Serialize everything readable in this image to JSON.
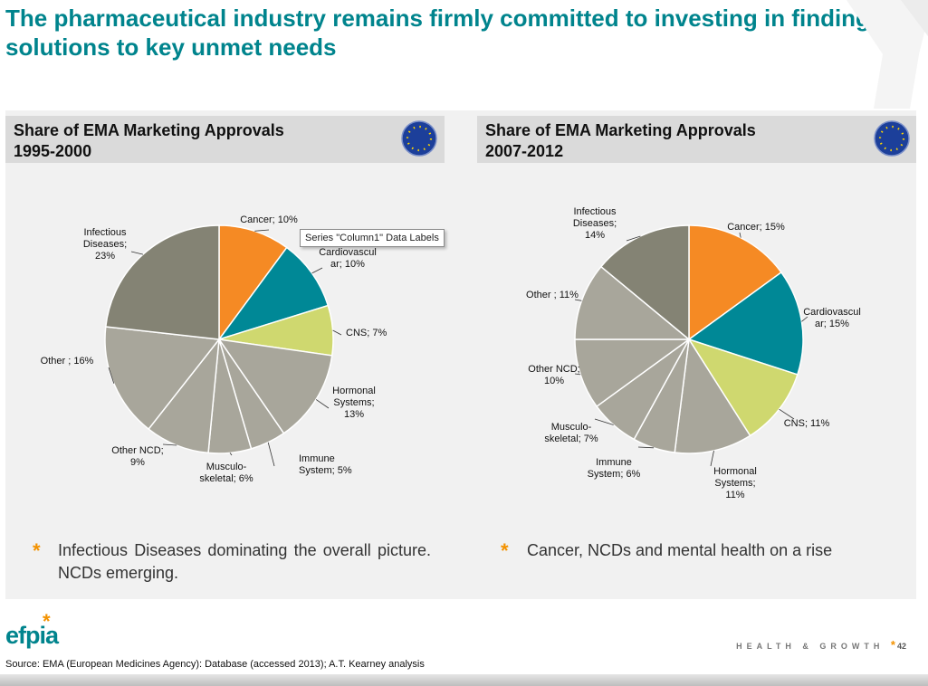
{
  "slide": {
    "title": "The pharmaceutical industry remains firmly committed to investing in finding solutions to key unmet needs",
    "tooltip": "Series \"Column1\" Data Labels",
    "brand": "efpia",
    "footer_tag": "HEALTH & GROWTH",
    "page_number": "42",
    "source": "Source: EMA (European Medicines Agency): Database (accessed 2013); A.T. Kearney analysis"
  },
  "bullets": [
    {
      "star": "*",
      "text": "Infectious Diseases dominating the overall picture. NCDs emerging."
    },
    {
      "star": "*",
      "text": "Cancer, NCDs and mental health on a rise"
    }
  ],
  "colors": {
    "teal": "#00848d",
    "orange": "#f58a24",
    "lime": "#cfd86f",
    "grey": "#a8a69b",
    "dark": "#848374"
  },
  "chart_data": [
    {
      "type": "pie",
      "title": "Share of EMA Marketing Approvals",
      "period": "1995-2000",
      "slices": [
        {
          "name": "Cancer",
          "value": 10,
          "label": [
            "Cancer; 10%"
          ],
          "color": "#f58a24"
        },
        {
          "name": "Cardiovascular",
          "value": 10,
          "label": [
            "Cardiovascul",
            "ar; 10%"
          ],
          "color": "#008896"
        },
        {
          "name": "CNS",
          "value": 7,
          "label": [
            "CNS; 7%"
          ],
          "color": "#cfd86f"
        },
        {
          "name": "Hormonal Systems",
          "value": 13,
          "label": [
            "Hormonal",
            "Systems;",
            "13%"
          ],
          "color": "#a8a69b"
        },
        {
          "name": "Immune System",
          "value": 5,
          "label": [
            "Immune",
            "System; 5%"
          ],
          "color": "#a8a69b"
        },
        {
          "name": "Musculo-skeletal",
          "value": 6,
          "label": [
            "Musculo-",
            "skeletal; 6%"
          ],
          "color": "#a8a69b"
        },
        {
          "name": "Other NCD",
          "value": 9,
          "label": [
            "Other NCD;",
            "9%"
          ],
          "color": "#a8a69b"
        },
        {
          "name": "Other",
          "value": 16,
          "label": [
            "Other ; 16%"
          ],
          "color": "#a8a69b"
        },
        {
          "name": "Infectious Diseases",
          "value": 23,
          "label": [
            "Infectious",
            "Diseases;",
            "23%"
          ],
          "color": "#848374"
        }
      ]
    },
    {
      "type": "pie",
      "title": "Share of EMA Marketing Approvals",
      "period": "2007-2012",
      "slices": [
        {
          "name": "Cancer",
          "value": 15,
          "label": [
            "Cancer; 15%"
          ],
          "color": "#f58a24"
        },
        {
          "name": "Cardiovascular",
          "value": 15,
          "label": [
            "Cardiovascul",
            "ar; 15%"
          ],
          "color": "#008896"
        },
        {
          "name": "CNS",
          "value": 11,
          "label": [
            "CNS; 11%"
          ],
          "color": "#cfd86f"
        },
        {
          "name": "Hormonal Systems",
          "value": 11,
          "label": [
            "Hormonal",
            "Systems;",
            "11%"
          ],
          "color": "#a8a69b"
        },
        {
          "name": "Immune System",
          "value": 6,
          "label": [
            "Immune",
            "System; 6%"
          ],
          "color": "#a8a69b"
        },
        {
          "name": "Musculo-skeletal",
          "value": 7,
          "label": [
            "Musculo-",
            "skeletal; 7%"
          ],
          "color": "#a8a69b"
        },
        {
          "name": "Other NCD",
          "value": 10,
          "label": [
            "Other NCD;",
            "10%"
          ],
          "color": "#a8a69b"
        },
        {
          "name": "Other",
          "value": 11,
          "label": [
            "Other ; 11%"
          ],
          "color": "#a8a69b"
        },
        {
          "name": "Infectious Diseases",
          "value": 14,
          "label": [
            "Infectious",
            "Diseases;",
            "14%"
          ],
          "color": "#848374"
        }
      ]
    }
  ]
}
